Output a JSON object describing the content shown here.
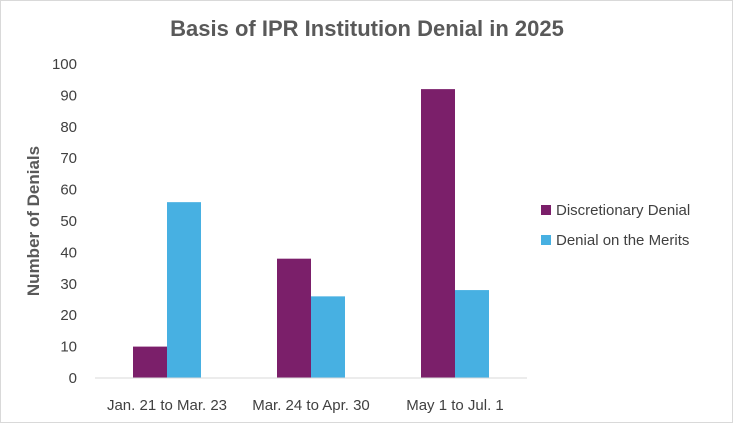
{
  "chart_data": {
    "type": "bar",
    "title": "Basis of IPR Institution Denial in 2025",
    "xlabel": "",
    "ylabel": "Number of Denials",
    "ylim": [
      0,
      100
    ],
    "yticks": [
      0,
      10,
      20,
      30,
      40,
      50,
      60,
      70,
      80,
      90,
      100
    ],
    "categories": [
      "Jan. 21 to Mar. 23",
      "Mar. 24 to Apr. 30",
      "May 1 to Jul. 1"
    ],
    "series": [
      {
        "name": "Discretionary Denial",
        "values": [
          10,
          38,
          92
        ],
        "color": "#7b1f6a"
      },
      {
        "name": "Denial on the Merits",
        "values": [
          56,
          26,
          28
        ],
        "color": "#47b0e2"
      }
    ],
    "grid": false,
    "legend": "right"
  }
}
